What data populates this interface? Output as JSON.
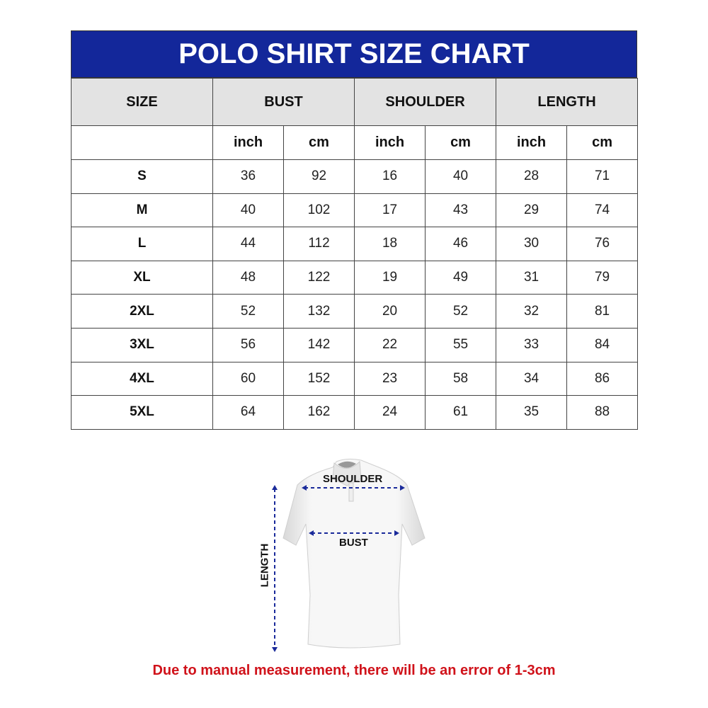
{
  "title": "POLO SHIRT SIZE CHART",
  "headers": {
    "size": "SIZE",
    "bust": "BUST",
    "shoulder": "SHOULDER",
    "length": "LENGTH"
  },
  "units": {
    "inch": "inch",
    "cm": "cm"
  },
  "rows": [
    {
      "size": "S",
      "bust_in": "36",
      "bust_cm": "92",
      "shoulder_in": "16",
      "shoulder_cm": "40",
      "length_in": "28",
      "length_cm": "71"
    },
    {
      "size": "M",
      "bust_in": "40",
      "bust_cm": "102",
      "shoulder_in": "17",
      "shoulder_cm": "43",
      "length_in": "29",
      "length_cm": "74"
    },
    {
      "size": "L",
      "bust_in": "44",
      "bust_cm": "112",
      "shoulder_in": "18",
      "shoulder_cm": "46",
      "length_in": "30",
      "length_cm": "76"
    },
    {
      "size": "XL",
      "bust_in": "48",
      "bust_cm": "122",
      "shoulder_in": "19",
      "shoulder_cm": "49",
      "length_in": "31",
      "length_cm": "79"
    },
    {
      "size": "2XL",
      "bust_in": "52",
      "bust_cm": "132",
      "shoulder_in": "20",
      "shoulder_cm": "52",
      "length_in": "32",
      "length_cm": "81"
    },
    {
      "size": "3XL",
      "bust_in": "56",
      "bust_cm": "142",
      "shoulder_in": "22",
      "shoulder_cm": "55",
      "length_in": "33",
      "length_cm": "84"
    },
    {
      "size": "4XL",
      "bust_in": "60",
      "bust_cm": "152",
      "shoulder_in": "23",
      "shoulder_cm": "58",
      "length_in": "34",
      "length_cm": "86"
    },
    {
      "size": "5XL",
      "bust_in": "64",
      "bust_cm": "162",
      "shoulder_in": "24",
      "shoulder_cm": "61",
      "length_in": "35",
      "length_cm": "88"
    }
  ],
  "diagram": {
    "shoulder_label": "SHOULDER",
    "bust_label": "BUST",
    "length_label": "LENGTH"
  },
  "note": "Due to manual measurement, there will be an error of 1-3cm",
  "colors": {
    "title_bg": "#13279a",
    "header_bg": "#e3e3e3",
    "arrow": "#1a2a9a",
    "note": "#d0121a"
  }
}
